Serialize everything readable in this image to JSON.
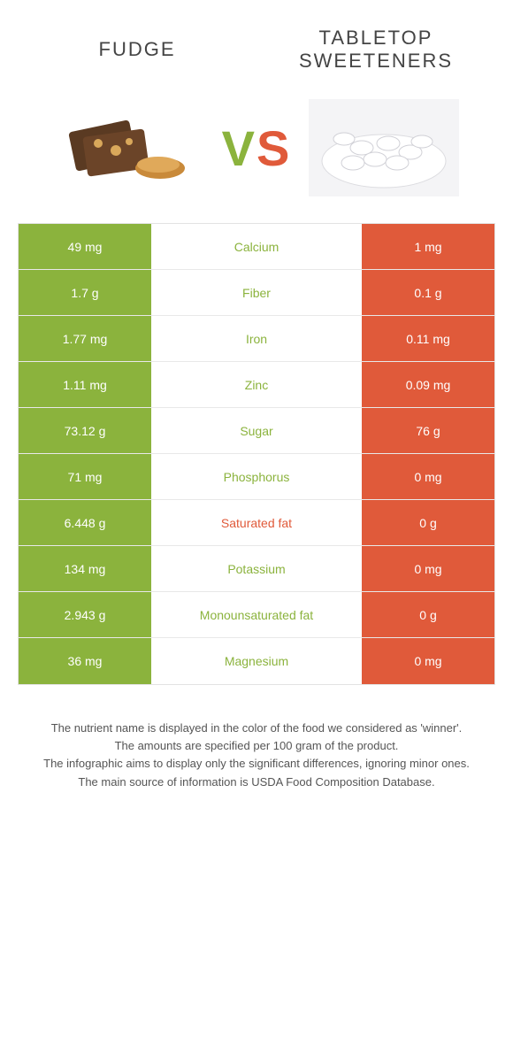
{
  "header": {
    "left": "FUDGE",
    "right": "TABLETOP SWEETENERS"
  },
  "vs": {
    "v": "V",
    "s": "S"
  },
  "colors": {
    "green": "#8bb33d",
    "orange": "#e05a3a",
    "midText": {
      "green": "#8bb33d",
      "orange": "#e05a3a"
    }
  },
  "rows": [
    {
      "left": "49 mg",
      "mid": "Calcium",
      "right": "1 mg",
      "winner": "green"
    },
    {
      "left": "1.7 g",
      "mid": "Fiber",
      "right": "0.1 g",
      "winner": "green"
    },
    {
      "left": "1.77 mg",
      "mid": "Iron",
      "right": "0.11 mg",
      "winner": "green"
    },
    {
      "left": "1.11 mg",
      "mid": "Zinc",
      "right": "0.09 mg",
      "winner": "green"
    },
    {
      "left": "73.12 g",
      "mid": "Sugar",
      "right": "76 g",
      "winner": "green"
    },
    {
      "left": "71 mg",
      "mid": "Phosphorus",
      "right": "0 mg",
      "winner": "green"
    },
    {
      "left": "6.448 g",
      "mid": "Saturated fat",
      "right": "0 g",
      "winner": "orange"
    },
    {
      "left": "134 mg",
      "mid": "Potassium",
      "right": "0 mg",
      "winner": "green"
    },
    {
      "left": "2.943 g",
      "mid": "Monounsaturated fat",
      "right": "0 g",
      "winner": "green"
    },
    {
      "left": "36 mg",
      "mid": "Magnesium",
      "right": "0 mg",
      "winner": "green"
    }
  ],
  "footer": {
    "l1": "The nutrient name is displayed in the color of the food we considered as 'winner'.",
    "l2": "The amounts are specified per 100 gram of the product.",
    "l3": "The infographic aims to display only the significant differences, ignoring minor ones.",
    "l4": "The main source of information is USDA Food Composition Database."
  }
}
